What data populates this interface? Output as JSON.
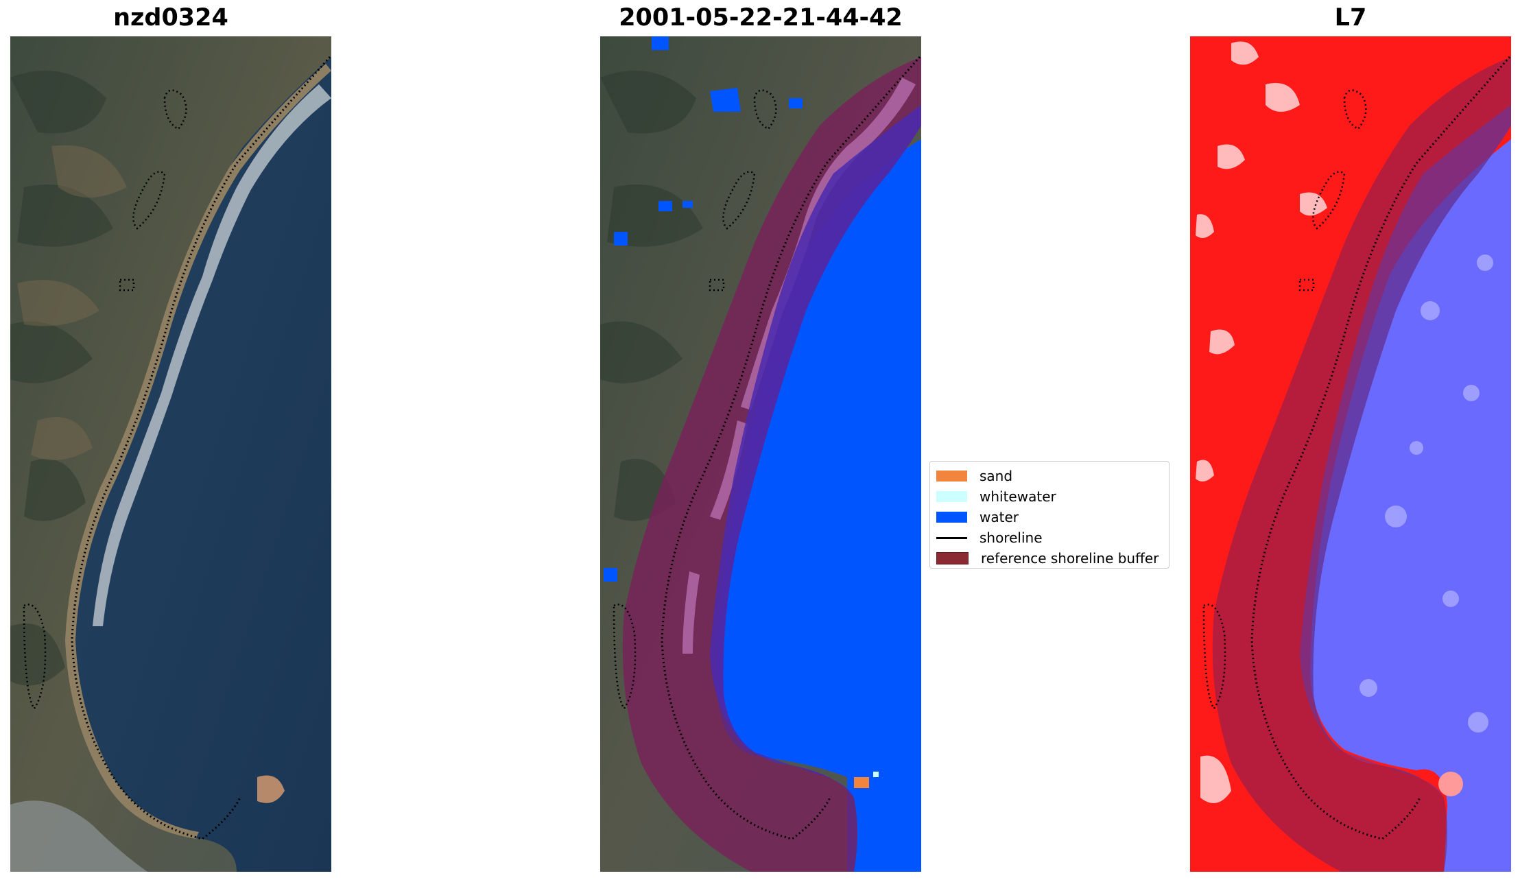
{
  "panels": [
    {
      "title": "nzd0324"
    },
    {
      "title": "2001-05-22-21-44-42"
    },
    {
      "title": "L7"
    }
  ],
  "legend": {
    "items": [
      {
        "label": "sand",
        "color": "#f2853d",
        "kind": "patch"
      },
      {
        "label": "whitewater",
        "color": "#ccffff",
        "kind": "patch"
      },
      {
        "label": "water",
        "color": "#0055ff",
        "kind": "patch"
      },
      {
        "label": "shoreline",
        "color": "#000000",
        "kind": "line"
      },
      {
        "label": "reference shoreline buffer",
        "color": "#8b2a33",
        "kind": "patch"
      }
    ]
  },
  "colors": {
    "satellite_land": "#4a5a4a",
    "satellite_water": "#1c3c5c",
    "buffer": "#7a2350",
    "classified_water": "#0055ff",
    "index_land": "#ff1a1a",
    "index_water": "#5a5aff"
  }
}
